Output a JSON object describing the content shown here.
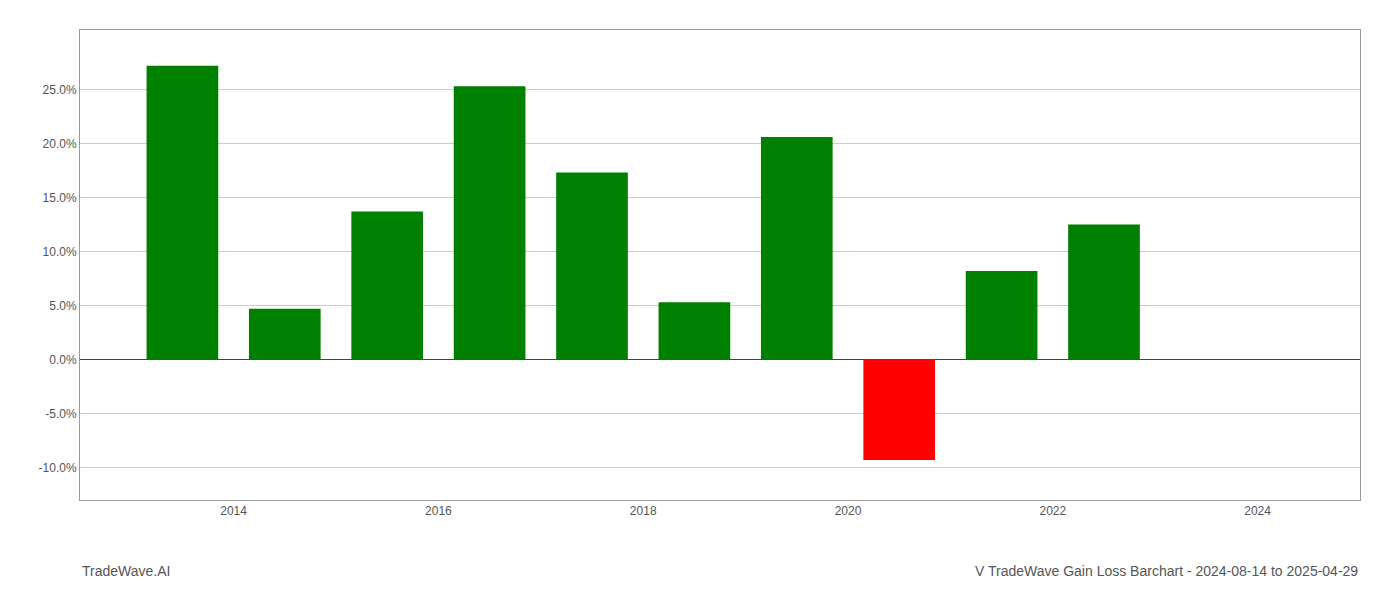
{
  "chart_data": {
    "type": "bar",
    "title": "V TradeWave Gain Loss Barchart - 2024-08-14 to 2025-04-29",
    "annotations": [
      "TradeWave.AI"
    ],
    "x": [
      2013.5,
      2014.5,
      2015.5,
      2016.5,
      2017.5,
      2018.5,
      2019.5,
      2020.5,
      2021.5,
      2022.5
    ],
    "values": [
      0.272,
      0.047,
      0.137,
      0.253,
      0.173,
      0.053,
      0.206,
      -0.093,
      0.082,
      0.125
    ],
    "colors": [
      "#008000",
      "#008000",
      "#008000",
      "#008000",
      "#008000",
      "#008000",
      "#008000",
      "#ff0000",
      "#008000",
      "#008000"
    ],
    "xlim": [
      2012.5,
      2025.0
    ],
    "xticks": [
      2014,
      2016,
      2018,
      2020,
      2022,
      2024
    ],
    "ylim": [
      -0.13,
      0.305
    ],
    "yticks": [
      {
        "value": -0.1,
        "label": "-10.0%"
      },
      {
        "value": -0.05,
        "label": "-5.0%"
      },
      {
        "value": 0.0,
        "label": "0.0%"
      },
      {
        "value": 0.05,
        "label": "5.0%"
      },
      {
        "value": 0.1,
        "label": "10.0%"
      },
      {
        "value": 0.15,
        "label": "15.0%"
      },
      {
        "value": 0.2,
        "label": "20.0%"
      },
      {
        "value": 0.25,
        "label": "25.0%"
      }
    ],
    "grid": true
  }
}
